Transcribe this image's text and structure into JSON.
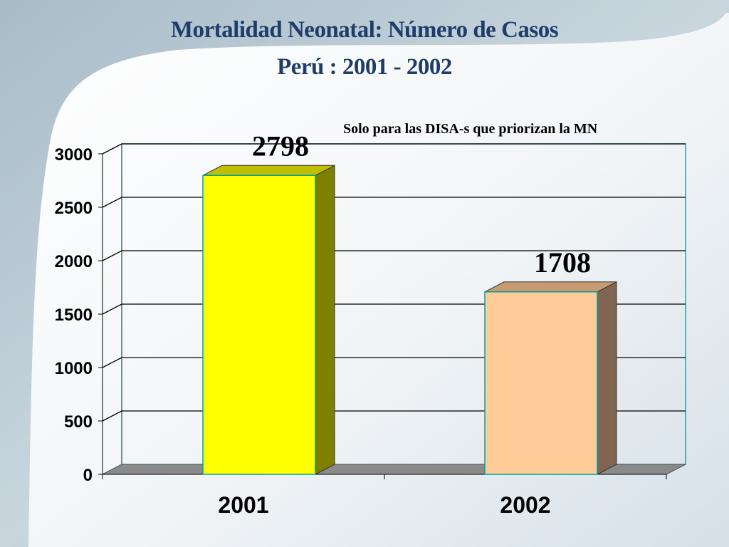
{
  "slide": {
    "title_line1": "Mortalidad Neonatal: Número de Casos",
    "title_line2": "Perú : 2001 - 2002",
    "note": "Solo para las DISA-s que priorizan la MN"
  },
  "chart_data": {
    "type": "bar",
    "categories": [
      "2001",
      "2002"
    ],
    "values": [
      2798,
      1708
    ],
    "data_labels": [
      "2798",
      "1708"
    ],
    "title": "Mortalidad Neonatal: Número de Casos Perú : 2001 - 2002",
    "xlabel": "",
    "ylabel": "",
    "ylim": [
      0,
      3000
    ],
    "yticks": [
      0,
      500,
      1000,
      1500,
      2000,
      2500,
      3000
    ],
    "grid": true,
    "style": "3d-column",
    "colors": {
      "bars": [
        "#ffff00",
        "#ffcc99"
      ],
      "bar_sides": [
        "#808000",
        "#806650"
      ],
      "bar_tops": [
        "#c0c000",
        "#c89a70"
      ],
      "bar_outline": "#00a0a0",
      "wall_border": "#20a0a0",
      "floor": "#8a8a8a",
      "title": "#1f3d6b"
    }
  }
}
